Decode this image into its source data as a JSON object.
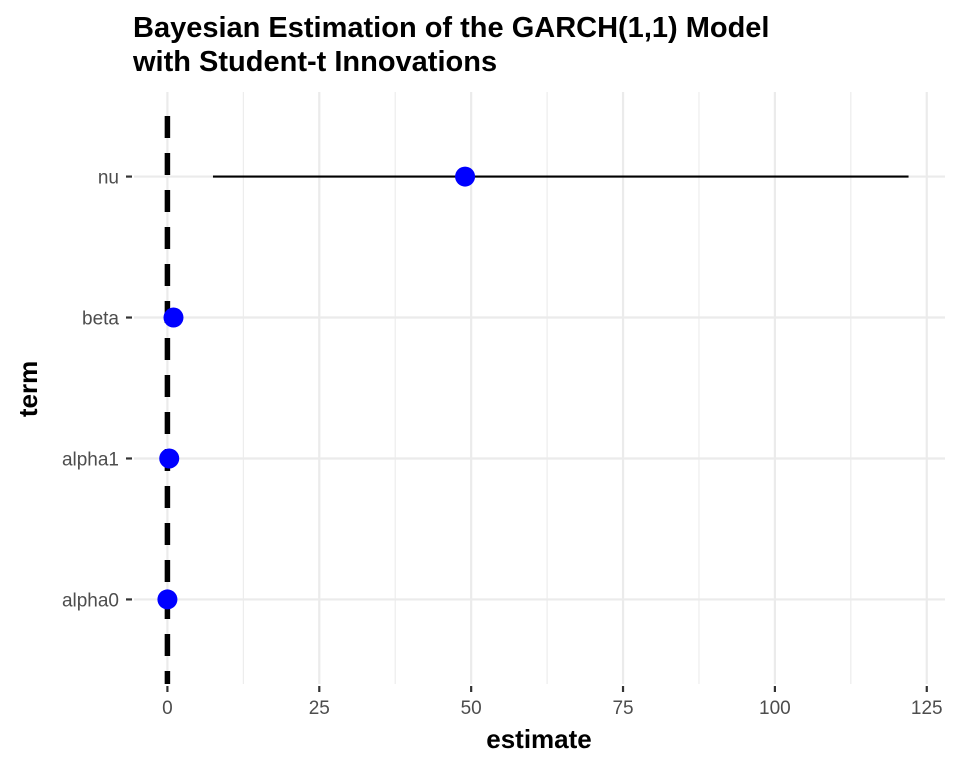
{
  "chart_data": {
    "type": "scatter",
    "title_lines": [
      "Bayesian Estimation of the GARCH(1,1) Model",
      "with Student-t Innovations"
    ],
    "xlabel": "estimate",
    "ylabel": "term",
    "categories": [
      "alpha0",
      "alpha1",
      "beta",
      "nu"
    ],
    "series": [
      {
        "values": [
          0.0,
          0.3,
          1.0,
          49.0
        ],
        "lower": [
          0.0,
          0.1,
          0.9,
          7.5
        ],
        "upper": [
          0.1,
          0.6,
          1.0,
          122.0
        ]
      }
    ],
    "xlim": [
      -5.5,
      128
    ],
    "x_ticks": [
      0,
      25,
      50,
      75,
      100,
      125
    ],
    "x_tick_labels": [
      "0",
      "25",
      "50",
      "75",
      "100",
      "125"
    ],
    "reference_line": {
      "x": 0,
      "style": "dashed",
      "color": "#000000"
    },
    "grid": true,
    "point_color": "#0000ff",
    "interval_color": "#000000",
    "grid_color": "#ebebeb"
  }
}
